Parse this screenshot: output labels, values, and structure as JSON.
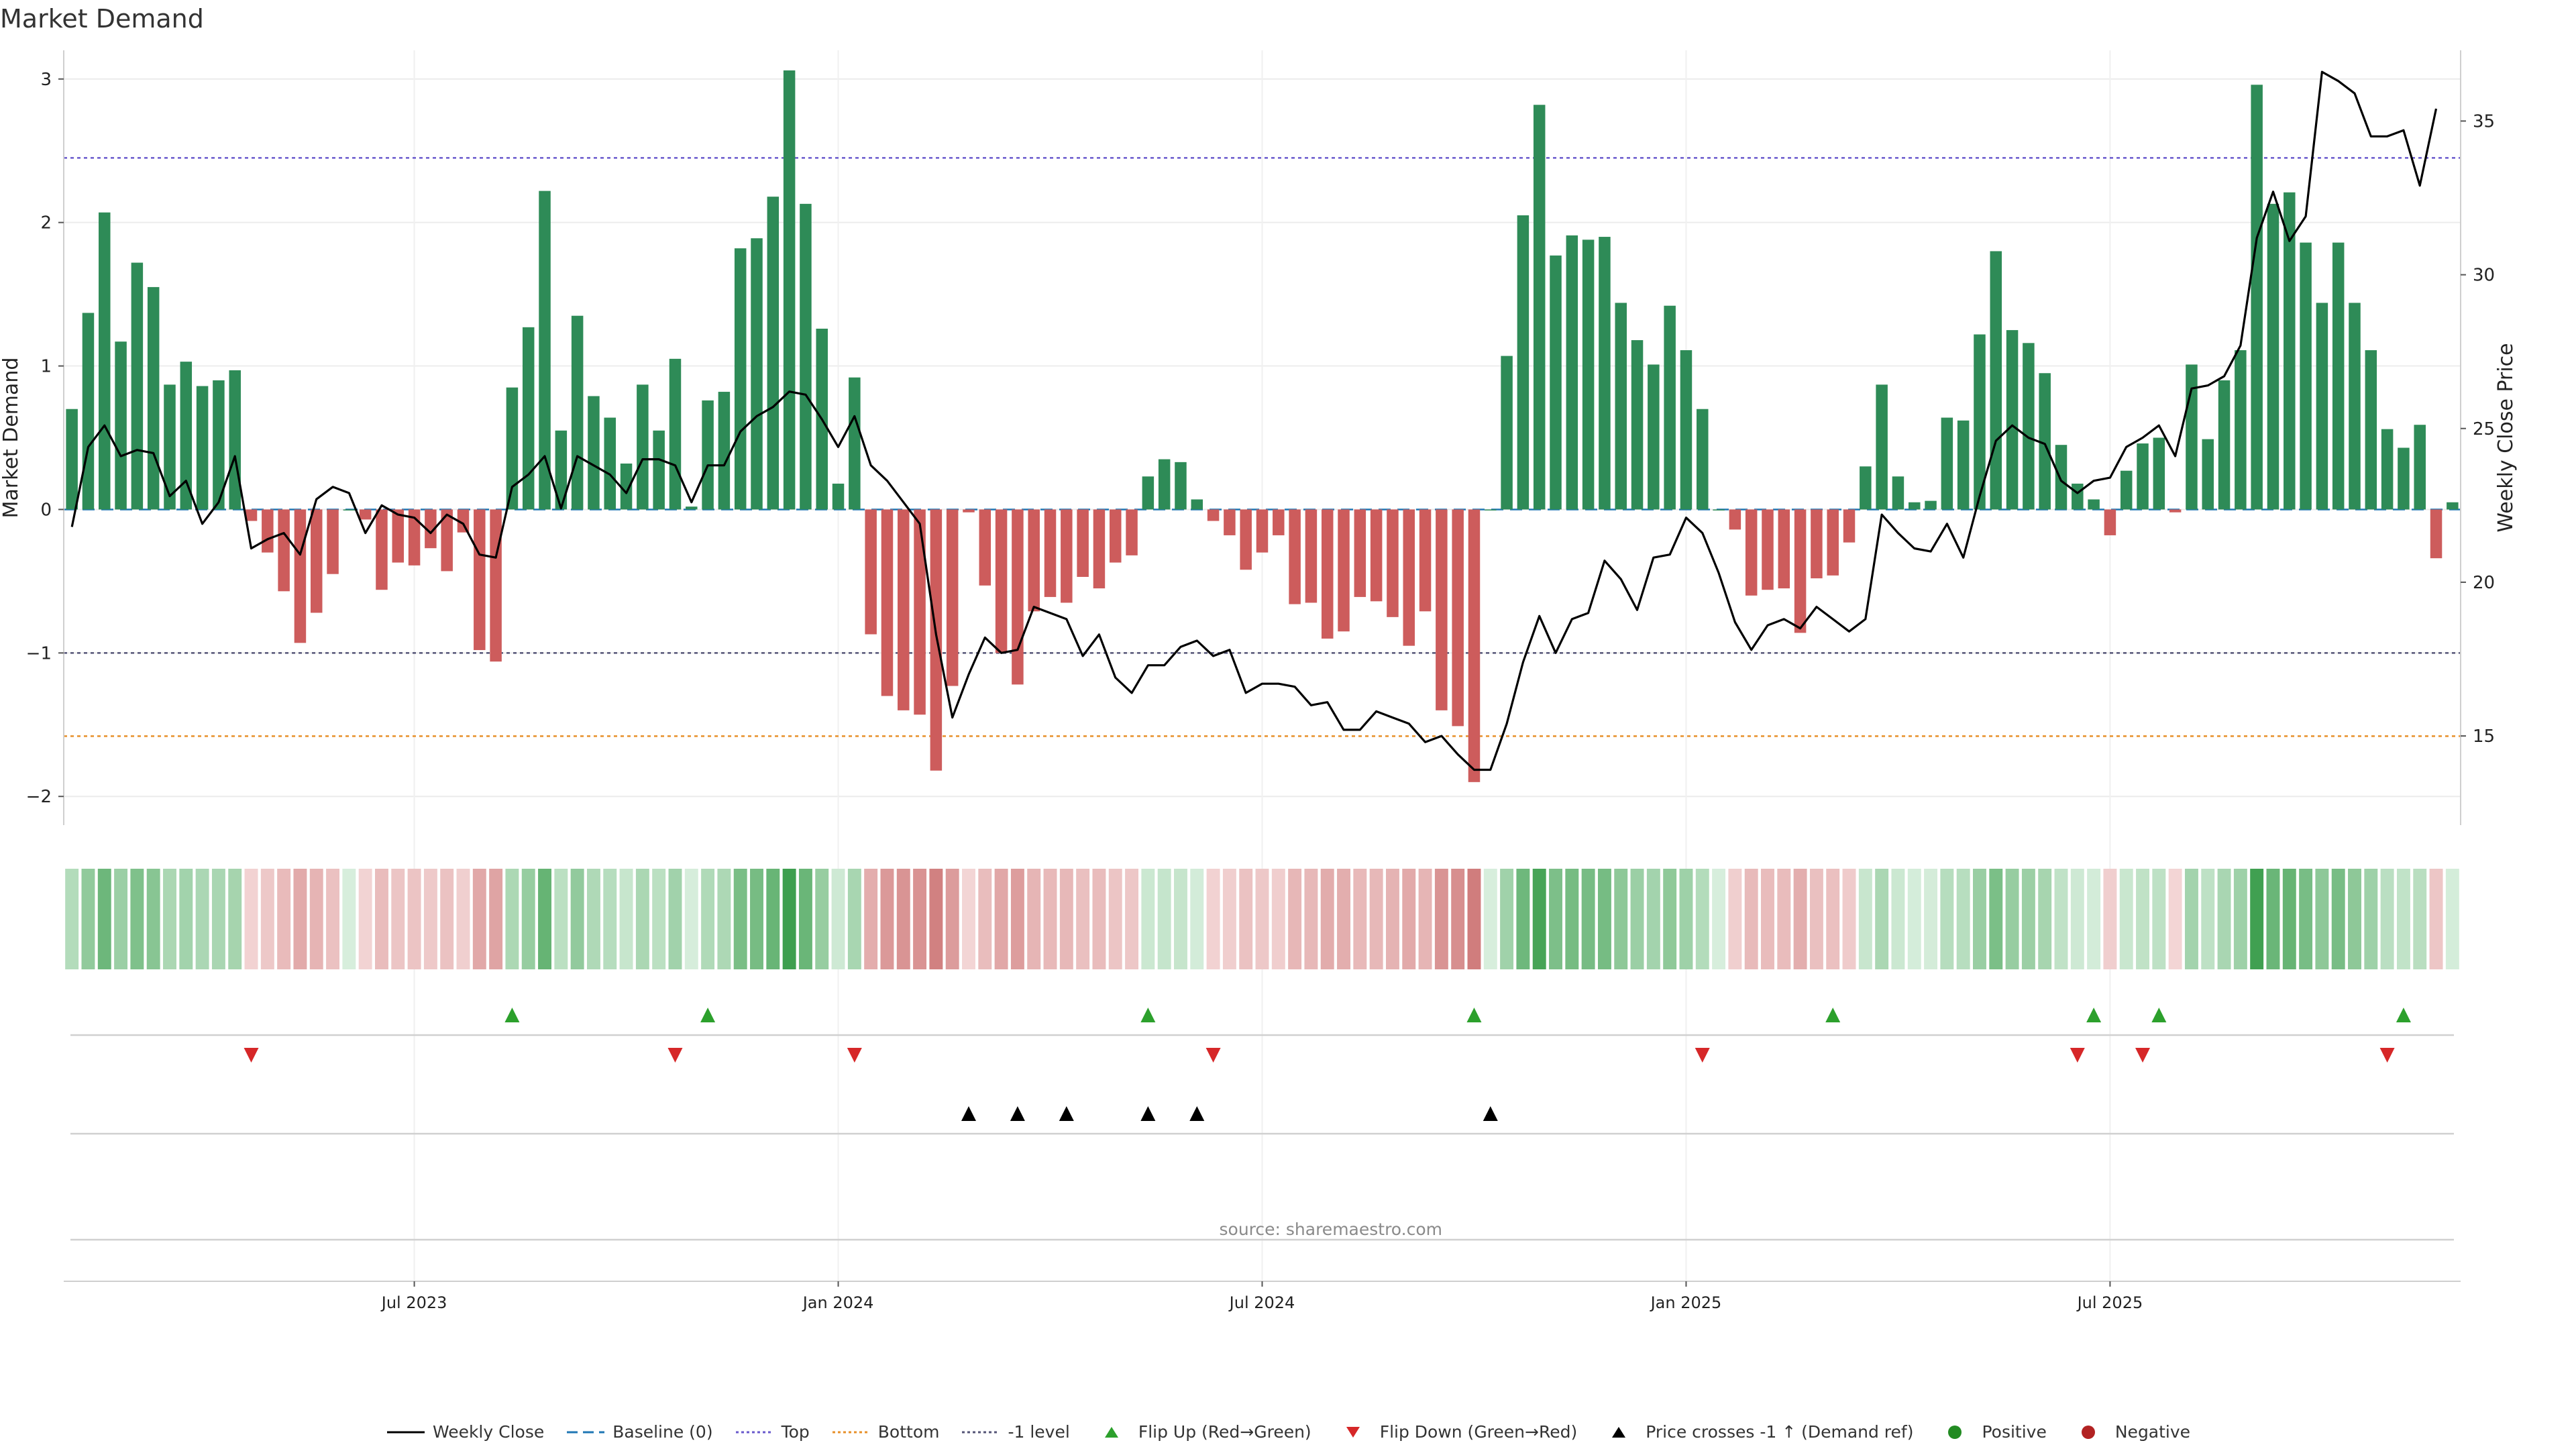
{
  "title": "Market Demand",
  "source": "source: sharemaestro.com",
  "colors": {
    "pos_bar": "#2e8b57",
    "neg_bar": "#cd5c5c",
    "price_line": "#000000",
    "top_line": "#6a5acd",
    "bottom_line": "#e8902a",
    "minus1_line": "#555577",
    "flip_up": "#2ca02c",
    "flip_down": "#d62728",
    "cross": "#000000",
    "positive_dot": "#228b22",
    "negative_dot": "#b22222",
    "baseline": "#1f77b4"
  },
  "chart_data": {
    "type": "bar+line",
    "title": "Market Demand",
    "ylabel": "Market Demand",
    "y2label": "Weekly Close Price",
    "ylim": [
      -2.2,
      3.2
    ],
    "y2lim": [
      12.1,
      37.3
    ],
    "yticks": [
      -2,
      -1,
      0,
      1,
      2,
      3
    ],
    "ytick_labels": [
      "−2",
      "−1",
      "0",
      "1",
      "2",
      "3"
    ],
    "y2ticks": [
      15,
      20,
      25,
      30,
      35
    ],
    "y2tick_labels": [
      "15",
      "20",
      "25",
      "30",
      "35"
    ],
    "xticks": [
      21,
      47,
      73,
      99,
      125
    ],
    "xtick_labels": [
      "Jul 2023",
      "Jan 2024",
      "Jul 2024",
      "Jan 2025",
      "Jul 2025"
    ],
    "reference_lines": {
      "top": 2.45,
      "bottom": -1.58,
      "minus1": -1.0,
      "baseline": 0
    },
    "demand": [
      0.7,
      1.37,
      2.07,
      1.17,
      1.72,
      1.55,
      0.87,
      1.03,
      0.86,
      0.9,
      0.97,
      -0.08,
      -0.3,
      -0.57,
      -0.93,
      -0.72,
      -0.45,
      0,
      -0.07,
      -0.56,
      -0.37,
      -0.39,
      -0.27,
      -0.43,
      -0.16,
      -0.98,
      -1.06,
      0.85,
      1.27,
      2.22,
      0.55,
      1.35,
      0.79,
      0.64,
      0.32,
      0.87,
      0.55,
      1.05,
      0.02,
      0.76,
      0.82,
      1.82,
      1.89,
      2.18,
      3.06,
      2.13,
      1.26,
      0.18,
      0.92,
      -0.87,
      -1.3,
      -1.4,
      -1.43,
      -1.82,
      -1.23,
      -0.02,
      -0.53,
      -1.0,
      -1.22,
      -0.71,
      -0.61,
      -0.65,
      -0.47,
      -0.55,
      -0.37,
      -0.32,
      0.23,
      0.35,
      0.33,
      0.07,
      -0.08,
      -0.18,
      -0.42,
      -0.3,
      -0.18,
      -0.66,
      -0.65,
      -0.9,
      -0.85,
      -0.61,
      -0.64,
      -0.75,
      -0.95,
      -0.71,
      -1.4,
      -1.51,
      -1.9,
      0,
      1.07,
      2.05,
      2.82,
      1.77,
      1.91,
      1.88,
      1.9,
      1.44,
      1.18,
      1.01,
      1.42,
      1.11,
      0.7,
      0,
      -0.14,
      -0.6,
      -0.56,
      -0.55,
      -0.86,
      -0.48,
      -0.46,
      -0.23,
      0.3,
      0.87,
      0.23,
      0.05,
      0.06,
      0.64,
      0.62,
      1.22,
      1.8,
      1.25,
      1.16,
      0.95,
      0.45,
      0.18,
      0.07,
      -0.18,
      0.27,
      0.46,
      0.5,
      -0.02,
      1.01,
      0.49,
      0.9,
      1.11,
      2.96,
      2.13,
      2.21,
      1.86,
      1.44,
      1.86,
      1.44,
      1.11,
      0.56,
      0.43,
      0.59,
      -0.34,
      0.05
    ],
    "price": [
      21.8,
      24.4,
      25.1,
      24.1,
      24.3,
      24.2,
      22.8,
      23.3,
      21.9,
      22.6,
      24.1,
      21.1,
      21.4,
      21.6,
      20.9,
      22.7,
      23.1,
      22.9,
      21.6,
      22.5,
      22.2,
      22.1,
      21.6,
      22.2,
      21.9,
      20.9,
      20.8,
      23.1,
      23.5,
      24.1,
      22.4,
      24.1,
      23.8,
      23.5,
      22.9,
      24.0,
      24.0,
      23.8,
      22.6,
      23.8,
      23.8,
      24.9,
      25.4,
      25.7,
      26.2,
      26.1,
      25.3,
      24.4,
      25.4,
      23.8,
      23.3,
      22.6,
      21.9,
      18.3,
      15.6,
      17.0,
      18.2,
      17.7,
      17.8,
      19.2,
      19.0,
      18.8,
      17.6,
      18.3,
      16.9,
      16.4,
      17.3,
      17.3,
      17.9,
      18.1,
      17.6,
      17.8,
      16.4,
      16.7,
      16.7,
      16.6,
      16.0,
      16.1,
      15.2,
      15.2,
      15.8,
      15.6,
      15.4,
      14.8,
      15.0,
      14.4,
      13.9,
      13.9,
      15.4,
      17.4,
      18.9,
      17.7,
      18.8,
      19.0,
      20.7,
      20.1,
      19.1,
      20.8,
      20.9,
      22.1,
      21.6,
      20.3,
      18.7,
      17.8,
      18.6,
      18.8,
      18.5,
      19.2,
      18.8,
      18.4,
      18.8,
      22.2,
      21.6,
      21.1,
      21.0,
      21.9,
      20.8,
      22.8,
      24.6,
      25.1,
      24.7,
      24.5,
      23.3,
      22.9,
      23.3,
      23.4,
      24.4,
      24.7,
      25.1,
      24.1,
      26.3,
      26.4,
      26.7,
      27.7,
      31.2,
      32.7,
      31.1,
      31.9,
      36.6,
      36.3,
      35.9,
      34.5,
      34.5,
      34.7,
      32.9,
      35.4
    ],
    "flip_up": [
      27,
      39,
      66,
      86,
      108,
      124,
      128,
      143
    ],
    "flip_down": [
      11,
      37,
      48,
      70,
      100,
      123,
      127,
      142
    ],
    "price_cross": [
      55,
      58,
      61,
      66,
      69,
      87
    ],
    "legend": [
      {
        "label": "Weekly Close",
        "kind": "line"
      },
      {
        "label": "Baseline (0)",
        "kind": "dash"
      },
      {
        "label": "Top",
        "kind": "dot-top"
      },
      {
        "label": "Bottom",
        "kind": "dot-bottom"
      },
      {
        "label": "-1 level",
        "kind": "dot-minus1"
      },
      {
        "label": "Flip Up (Red→Green)",
        "kind": "tri-up"
      },
      {
        "label": "Flip Down (Green→Red)",
        "kind": "tri-down"
      },
      {
        "label": "Price crosses -1 ↑ (Demand ref)",
        "kind": "tri-cross"
      },
      {
        "label": "Positive",
        "kind": "dot-pos"
      },
      {
        "label": "Negative",
        "kind": "dot-neg"
      }
    ]
  }
}
